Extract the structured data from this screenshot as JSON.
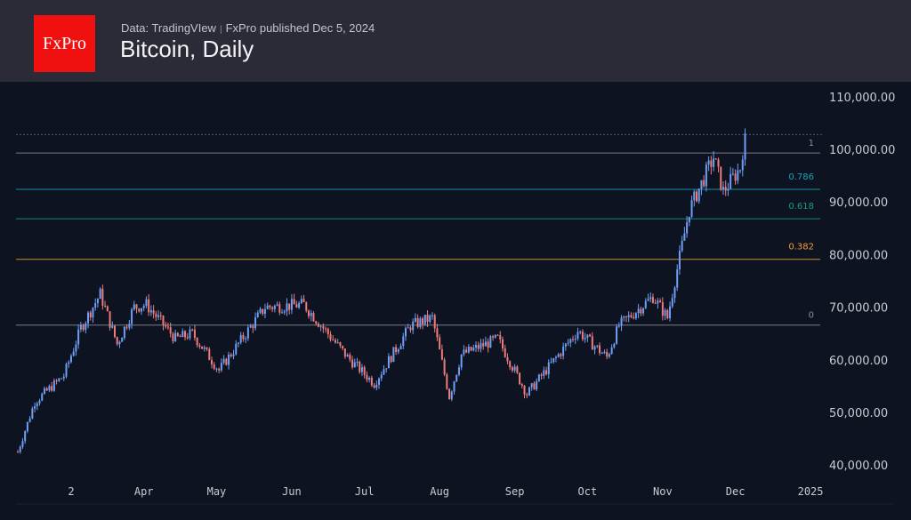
{
  "header": {
    "logo": "FxPro",
    "source": "Data: TradingVIew",
    "separator": "|",
    "published": "FxPro published Dec 5, 2024",
    "title": "Bitcoin, Daily"
  },
  "colors": {
    "up": "#6f9ef5",
    "down": "#ef7b7b",
    "fib_1": "#8a8f99",
    "fib_0786": "#17a2b8",
    "fib_0618": "#1a9c84",
    "fib_0382": "#f0a030",
    "fib_0": "#8a8f99"
  },
  "chart_data": {
    "type": "candlestick",
    "title": "Bitcoin, Daily",
    "ylim": [
      38000,
      113000
    ],
    "y_ticks": [
      110000,
      100000,
      90000,
      80000,
      70000,
      60000,
      50000,
      40000
    ],
    "y_tick_labels": [
      "110,000.00",
      "100,000.00",
      "90,000.00",
      "80,000.00",
      "70,000.00",
      "60,000.00",
      "50,000.00",
      "40,000.00"
    ],
    "x_ticks": [
      {
        "day": 22,
        "label": "2"
      },
      {
        "day": 52,
        "label": "Apr"
      },
      {
        "day": 82,
        "label": "May"
      },
      {
        "day": 113,
        "label": "Jun"
      },
      {
        "day": 143,
        "label": "Jul"
      },
      {
        "day": 174,
        "label": "Aug"
      },
      {
        "day": 205,
        "label": "Sep"
      },
      {
        "day": 235,
        "label": "Oct"
      },
      {
        "day": 266,
        "label": "Nov"
      },
      {
        "day": 296,
        "label": "Dec"
      },
      {
        "day": 327,
        "label": "2025"
      }
    ],
    "xlim_days": [
      -3,
      340
    ],
    "price_keypoints": [
      [
        0,
        42500
      ],
      [
        7,
        52000
      ],
      [
        19,
        57000
      ],
      [
        26,
        66000
      ],
      [
        34,
        72500
      ],
      [
        41,
        63000
      ],
      [
        48,
        70000
      ],
      [
        53,
        70500
      ],
      [
        65,
        64000
      ],
      [
        72,
        65000
      ],
      [
        83,
        58000
      ],
      [
        102,
        70000
      ],
      [
        118,
        70500
      ],
      [
        136,
        60500
      ],
      [
        147,
        55500
      ],
      [
        162,
        66500
      ],
      [
        171,
        68000
      ],
      [
        178,
        53000
      ],
      [
        183,
        61000
      ],
      [
        198,
        64000
      ],
      [
        210,
        53500
      ],
      [
        231,
        65500
      ],
      [
        243,
        60500
      ],
      [
        248,
        66500
      ],
      [
        262,
        72000
      ],
      [
        268,
        68000
      ],
      [
        271,
        75000
      ],
      [
        277,
        88500
      ],
      [
        287,
        98500
      ],
      [
        291,
        92000
      ],
      [
        298,
        96500
      ],
      [
        300,
        103000
      ]
    ],
    "fib_levels": [
      {
        "label": "1",
        "value": 99300
      },
      {
        "label": "0.786",
        "value": 92400
      },
      {
        "label": "0.618",
        "value": 86800
      },
      {
        "label": "0.382",
        "value": 79100
      },
      {
        "label": "0",
        "value": 66600
      }
    ],
    "high_marker": 102800
  }
}
